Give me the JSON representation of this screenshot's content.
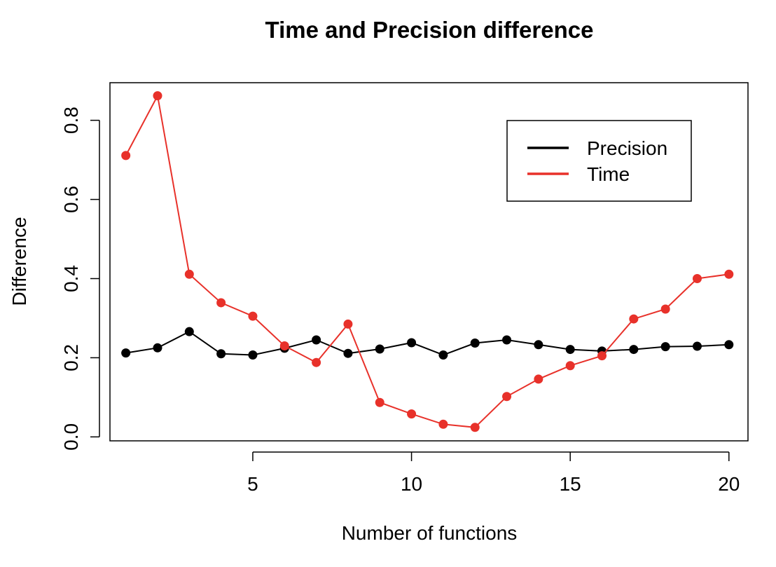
{
  "chart_data": {
    "type": "line",
    "title": "Time and Precision difference",
    "xlabel": "Number of functions",
    "ylabel": "Difference",
    "xlim": [
      0.5,
      20.6
    ],
    "ylim": [
      -0.01,
      0.895
    ],
    "xticks": [
      5,
      10,
      15,
      20
    ],
    "xtick_labels": [
      "5",
      "10",
      "15",
      "20"
    ],
    "yticks": [
      0.0,
      0.2,
      0.4,
      0.6,
      0.8
    ],
    "ytick_labels": [
      "0.0",
      "0.2",
      "0.4",
      "0.6",
      "0.8"
    ],
    "grid": false,
    "legend_position": "top-right",
    "x": [
      1,
      2,
      3,
      4,
      5,
      6,
      7,
      8,
      9,
      10,
      11,
      12,
      13,
      14,
      15,
      16,
      17,
      18,
      19,
      20
    ],
    "series": [
      {
        "name": "Precision",
        "color": "#000000",
        "values": [
          0.212,
          0.225,
          0.266,
          0.21,
          0.207,
          0.224,
          0.245,
          0.211,
          0.222,
          0.238,
          0.207,
          0.237,
          0.245,
          0.233,
          0.221,
          0.217,
          0.221,
          0.228,
          0.229,
          0.233
        ]
      },
      {
        "name": "Time",
        "color": "#e8312a",
        "values": [
          0.711,
          0.862,
          0.411,
          0.339,
          0.305,
          0.23,
          0.188,
          0.285,
          0.087,
          0.058,
          0.032,
          0.024,
          0.102,
          0.146,
          0.18,
          0.205,
          0.298,
          0.323,
          0.4,
          0.411
        ]
      }
    ]
  }
}
